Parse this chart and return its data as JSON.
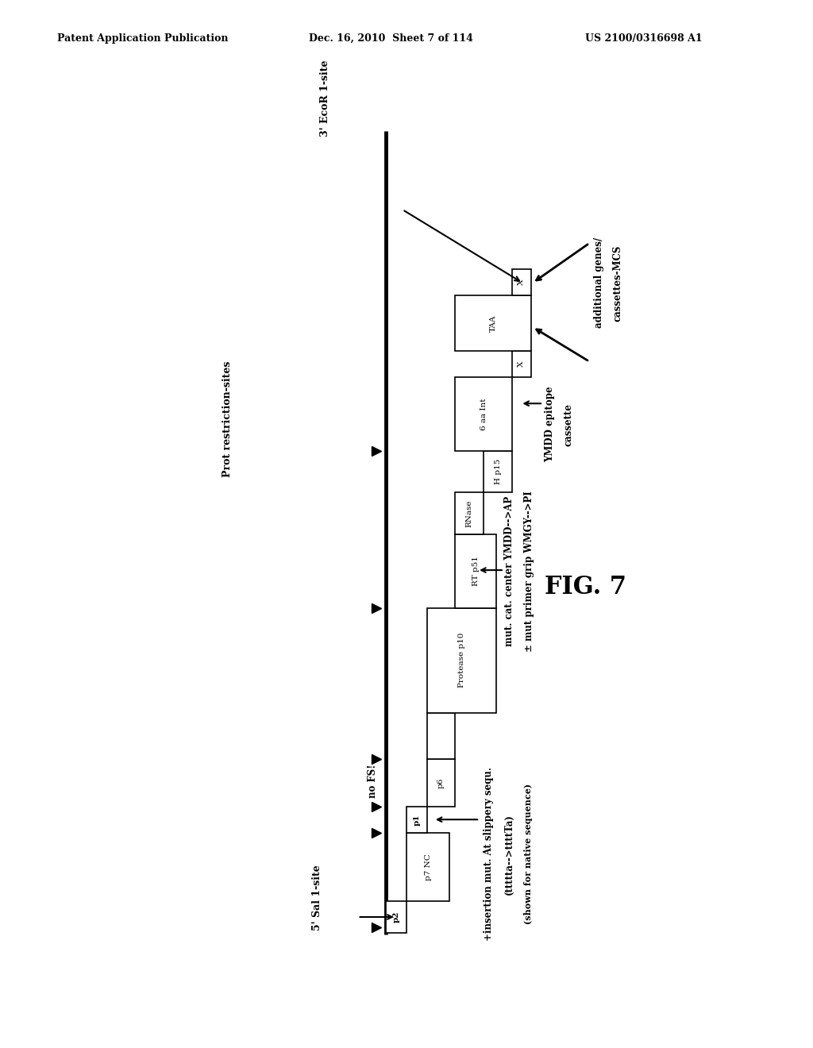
{
  "header_left": "Patent Application Publication",
  "header_mid": "Dec. 16, 2010  Sheet 7 of 114",
  "header_right": "US 2100/0316698 A1",
  "fig_label": "FIG. 7",
  "background_color": "#ffffff"
}
